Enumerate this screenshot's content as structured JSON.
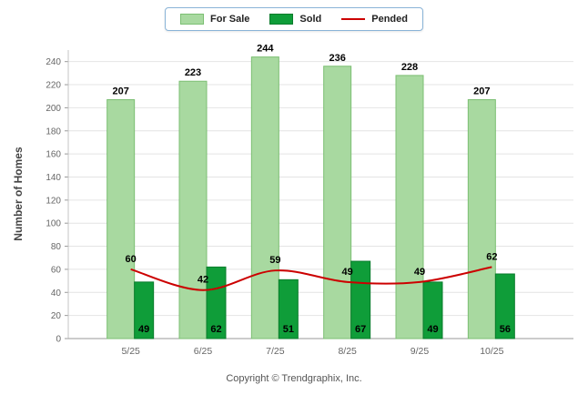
{
  "footer": "Copyright © Trendgraphix, Inc.",
  "colors": {
    "for_sale": "#a8d9a0",
    "for_sale_border": "#7cbf73",
    "sold": "#0f9d39",
    "sold_border": "#0a7c2c",
    "pended": "#cc0000",
    "legend_border": "#8ab4d8",
    "grid": "#e4e4e4",
    "axis": "#999999",
    "tick_text": "#666666"
  },
  "chart_data": {
    "type": "bar",
    "categories": [
      "5/25",
      "6/25",
      "7/25",
      "8/25",
      "9/25",
      "10/25"
    ],
    "series": [
      {
        "name": "For Sale",
        "type": "bar",
        "color": "#a8d9a0",
        "values": [
          207,
          223,
          244,
          236,
          228,
          207
        ]
      },
      {
        "name": "Sold",
        "type": "bar",
        "color": "#0f9d39",
        "values": [
          49,
          62,
          51,
          67,
          49,
          56
        ]
      },
      {
        "name": "Pended",
        "type": "line",
        "color": "#cc0000",
        "values": [
          60,
          42,
          59,
          49,
          49,
          62
        ]
      }
    ],
    "title": "",
    "xlabel": "",
    "ylabel": "Number of Homes",
    "ylim": [
      0,
      250
    ],
    "ytick_interval": 20,
    "grid": true,
    "legend_position": "top"
  }
}
